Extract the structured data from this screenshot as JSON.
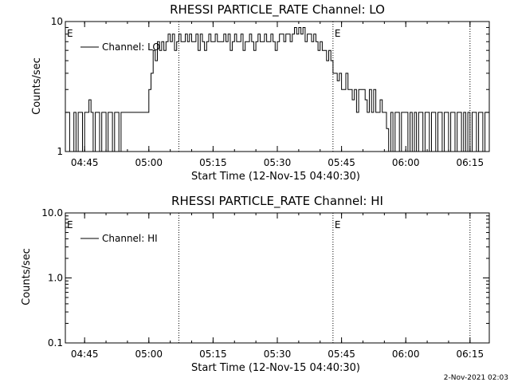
{
  "footer_stamp": "2-Nov-2021 02:03",
  "chart_data": [
    {
      "type": "line",
      "title": "RHESSI PARTICLE_RATE Channel: LO",
      "xlabel": "Start Time (12-Nov-15 04:40:30)",
      "ylabel": "Counts/sec",
      "yscale": "log",
      "ylim": [
        1,
        10
      ],
      "xlim": [
        "04:40:30",
        "06:19:30"
      ],
      "xticks": [
        "04:45",
        "05:00",
        "05:15",
        "05:30",
        "05:45",
        "06:00",
        "06:15"
      ],
      "yticks": [
        "1",
        "10"
      ],
      "grid": false,
      "legend_position": "top-left",
      "event_markers": [
        {
          "time": "04:40:30",
          "label": "E"
        },
        {
          "time": "05:07",
          "label": ""
        },
        {
          "time": "05:43",
          "label": "E"
        },
        {
          "time": "06:15",
          "label": ""
        }
      ],
      "series": [
        {
          "name": "Channel: LO",
          "x": [
            "04:40:30",
            "04:41:30",
            "04:42:30",
            "04:43:00",
            "04:43:30",
            "04:44:00",
            "04:44:30",
            "04:45:00",
            "04:45:30",
            "04:46:00",
            "04:46:30",
            "04:47:00",
            "04:47:30",
            "04:48:00",
            "04:48:30",
            "04:49:00",
            "04:49:30",
            "04:50:00",
            "04:50:30",
            "04:51:00",
            "04:51:30",
            "04:52:00",
            "04:52:30",
            "04:53:00",
            "04:53:30",
            "04:54:00",
            "04:54:30",
            "04:55:00",
            "04:55:30",
            "04:56:00",
            "04:56:30",
            "04:57:00",
            "04:57:30",
            "04:58:00",
            "04:58:30",
            "04:59:00",
            "04:59:30",
            "05:00:00",
            "05:00:30",
            "05:01:00",
            "05:01:30",
            "05:02:00",
            "05:02:30",
            "05:03:00",
            "05:03:30",
            "05:04:00",
            "05:04:30",
            "05:05:00",
            "05:05:30",
            "05:06:00",
            "05:06:30",
            "05:07:00",
            "05:07:30",
            "05:08:00",
            "05:08:30",
            "05:09:00",
            "05:09:30",
            "05:10:00",
            "05:10:30",
            "05:11:00",
            "05:11:30",
            "05:12:00",
            "05:12:30",
            "05:13:00",
            "05:13:30",
            "05:14:00",
            "05:14:30",
            "05:15:00",
            "05:15:30",
            "05:16:00",
            "05:16:30",
            "05:17:00",
            "05:17:30",
            "05:18:00",
            "05:18:30",
            "05:19:00",
            "05:19:30",
            "05:20:00",
            "05:20:30",
            "05:21:00",
            "05:21:30",
            "05:22:00",
            "05:22:30",
            "05:23:00",
            "05:23:30",
            "05:24:00",
            "05:24:30",
            "05:25:00",
            "05:25:30",
            "05:26:00",
            "05:26:30",
            "05:27:00",
            "05:27:30",
            "05:28:00",
            "05:28:30",
            "05:29:00",
            "05:29:30",
            "05:30:00",
            "05:30:30",
            "05:31:00",
            "05:31:30",
            "05:32:00",
            "05:32:30",
            "05:33:00",
            "05:33:30",
            "05:34:00",
            "05:34:30",
            "05:35:00",
            "05:35:30",
            "05:36:00",
            "05:36:30",
            "05:37:00",
            "05:37:30",
            "05:38:00",
            "05:38:30",
            "05:39:00",
            "05:39:30",
            "05:40:00",
            "05:40:30",
            "05:41:00",
            "05:41:30",
            "05:42:00",
            "05:42:30",
            "05:43:00",
            "05:43:30",
            "05:44:00",
            "05:44:30",
            "05:45:00",
            "05:45:30",
            "05:46:00",
            "05:46:30",
            "05:47:00",
            "05:47:30",
            "05:48:00",
            "05:48:30",
            "05:49:00",
            "05:49:30",
            "05:50:00",
            "05:50:30",
            "05:51:00",
            "05:51:30",
            "05:52:00",
            "05:52:30",
            "05:53:00",
            "05:53:30",
            "05:54:00",
            "05:54:30",
            "05:55:00",
            "05:55:30",
            "05:56:00",
            "05:56:30",
            "05:57:00",
            "05:57:30",
            "05:58:00",
            "05:58:30",
            "05:59:00",
            "05:59:30",
            "06:00:00",
            "06:00:30",
            "06:01:00",
            "06:01:30",
            "06:02:00",
            "06:02:30",
            "06:03:00",
            "06:03:30",
            "06:04:00",
            "06:04:30",
            "06:05:00",
            "06:05:30",
            "06:06:00",
            "06:06:30",
            "06:07:00",
            "06:07:30",
            "06:08:00",
            "06:08:30",
            "06:09:00",
            "06:09:30",
            "06:10:00",
            "06:10:30",
            "06:11:00",
            "06:11:30",
            "06:12:00",
            "06:12:30",
            "06:13:00",
            "06:13:30",
            "06:14:00",
            "06:14:30",
            "06:15:00",
            "06:15:30",
            "06:16:00",
            "06:16:30",
            "06:17:00",
            "06:17:30",
            "06:18:00",
            "06:18:30",
            "06:19:00"
          ],
          "y": [
            2,
            1,
            2,
            1,
            2,
            2,
            1,
            2,
            2,
            2.5,
            2,
            1,
            2,
            2,
            1,
            2,
            2,
            1,
            2,
            2,
            1,
            2,
            2,
            1,
            2,
            2,
            2,
            2,
            2,
            2,
            2,
            2,
            2,
            2,
            2,
            2,
            2,
            3,
            4,
            6,
            5,
            7,
            6,
            7,
            6,
            7,
            8,
            7,
            8,
            6,
            7,
            8,
            7,
            7,
            8,
            7,
            8,
            7,
            7,
            8,
            6,
            8,
            7,
            6,
            7,
            8,
            7,
            7,
            8,
            7,
            7,
            7,
            8,
            7,
            8,
            6,
            7,
            8,
            7,
            7,
            8,
            6,
            7,
            7,
            8,
            7,
            6,
            7,
            8,
            7,
            7,
            8,
            7,
            7,
            8,
            7,
            6,
            7,
            8,
            8,
            7,
            8,
            8,
            7,
            8,
            9,
            8,
            9,
            8,
            9,
            7,
            8,
            8,
            7,
            8,
            7,
            6,
            7,
            6,
            6,
            5,
            6,
            5,
            4,
            4,
            3.5,
            4,
            3,
            3,
            4,
            3,
            3,
            2.5,
            3,
            2,
            3,
            3,
            3,
            2.5,
            2,
            3,
            2,
            3,
            2,
            2,
            2.5,
            2,
            2,
            1.5,
            1,
            2,
            1,
            2,
            2,
            1,
            2,
            2,
            2,
            1,
            2,
            1,
            2,
            1,
            2,
            2,
            1,
            2,
            2,
            1,
            2,
            2,
            1,
            2,
            2,
            1,
            2,
            2,
            1,
            2,
            2,
            1,
            2,
            2,
            1,
            2,
            1,
            2,
            1,
            2,
            2,
            1,
            2,
            2,
            1,
            2,
            2
          ]
        }
      ]
    },
    {
      "type": "line",
      "title": "RHESSI PARTICLE_RATE Channel: HI",
      "xlabel": "Start Time (12-Nov-15 04:40:30)",
      "ylabel": "Counts/sec",
      "yscale": "log",
      "ylim": [
        0.1,
        10.0
      ],
      "xlim": [
        "04:40:30",
        "06:19:30"
      ],
      "xticks": [
        "04:45",
        "05:00",
        "05:15",
        "05:30",
        "05:45",
        "06:00",
        "06:15"
      ],
      "yticks": [
        "0.1",
        "1.0",
        "10.0"
      ],
      "grid": false,
      "legend_position": "top-left",
      "event_markers": [
        {
          "time": "04:40:30",
          "label": "E"
        },
        {
          "time": "05:07",
          "label": ""
        },
        {
          "time": "05:43",
          "label": "E"
        },
        {
          "time": "06:15",
          "label": ""
        }
      ],
      "series": [
        {
          "name": "Channel: HI",
          "x": [],
          "y": []
        }
      ]
    }
  ]
}
